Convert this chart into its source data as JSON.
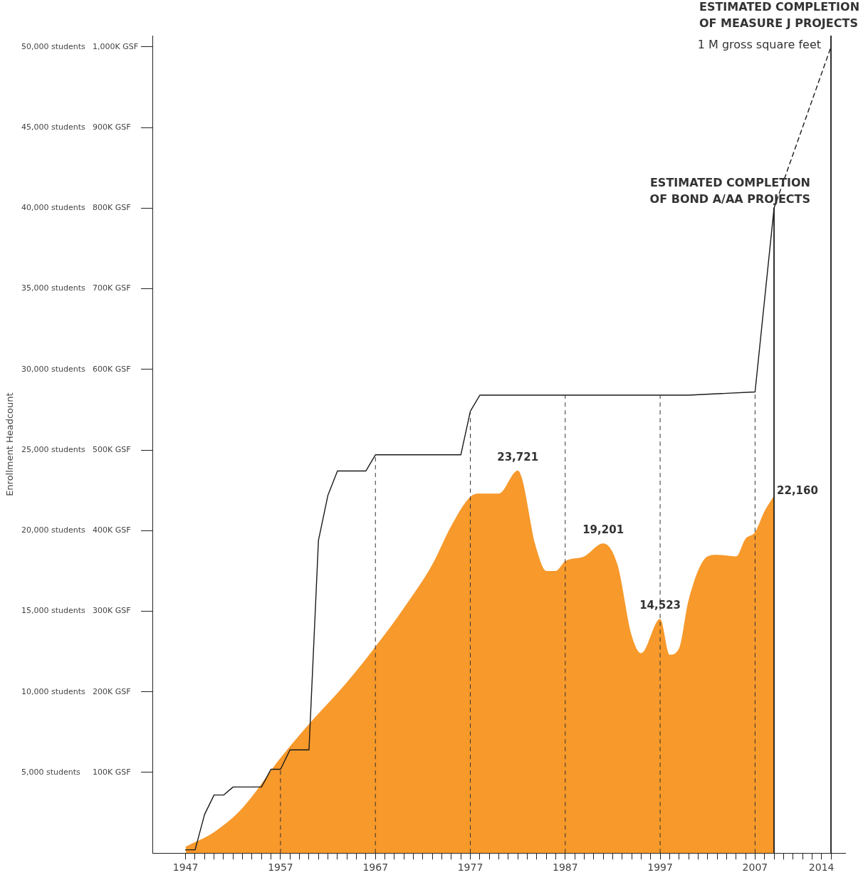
{
  "chart_data": {
    "type": "line",
    "ylabel": "Enrollment Headcount",
    "xlim": [
      1943.5,
      2016.5
    ],
    "ylim": [
      0,
      50700
    ],
    "xticks": [
      1947,
      {
        "value": 1948,
        "label": null
      },
      {
        "value": 1949,
        "label": null
      },
      {
        "value": 1950,
        "label": null
      },
      {
        "value": 1951,
        "label": null
      },
      {
        "value": 1952,
        "label": null
      },
      {
        "value": 1953,
        "label": null
      },
      {
        "value": 1954,
        "label": null
      },
      {
        "value": 1955,
        "label": null
      },
      {
        "value": 1956,
        "label": null
      },
      1957,
      {
        "value": 1958,
        "label": null
      },
      {
        "value": 1959,
        "label": null
      },
      {
        "value": 1960,
        "label": null
      },
      {
        "value": 1961,
        "label": null
      },
      {
        "value": 1962,
        "label": null
      },
      {
        "value": 1963,
        "label": null
      },
      {
        "value": 1964,
        "label": null
      },
      {
        "value": 1965,
        "label": null
      },
      {
        "value": 1966,
        "label": null
      },
      1967,
      {
        "value": 1968,
        "label": null
      },
      {
        "value": 1969,
        "label": null
      },
      {
        "value": 1970,
        "label": null
      },
      {
        "value": 1971,
        "label": null
      },
      {
        "value": 1972,
        "label": null
      },
      {
        "value": 1973,
        "label": null
      },
      {
        "value": 1974,
        "label": null
      },
      {
        "value": 1975,
        "label": null
      },
      {
        "value": 1976,
        "label": null
      },
      1977,
      {
        "value": 1978,
        "label": null
      },
      {
        "value": 1979,
        "label": null
      },
      {
        "value": 1980,
        "label": null
      },
      {
        "value": 1981,
        "label": null
      },
      {
        "value": 1982,
        "label": null
      },
      {
        "value": 1983,
        "label": null
      },
      {
        "value": 1984,
        "label": null
      },
      {
        "value": 1985,
        "label": null
      },
      {
        "value": 1986,
        "label": null
      },
      1987,
      {
        "value": 1988,
        "label": null
      },
      {
        "value": 1989,
        "label": null
      },
      {
        "value": 1990,
        "label": null
      },
      {
        "value": 1991,
        "label": null
      },
      {
        "value": 1992,
        "label": null
      },
      {
        "value": 1993,
        "label": null
      },
      {
        "value": 1994,
        "label": null
      },
      {
        "value": 1995,
        "label": null
      },
      {
        "value": 1996,
        "label": null
      },
      1997,
      {
        "value": 1998,
        "label": null
      },
      {
        "value": 1999,
        "label": null
      },
      {
        "value": 2000,
        "label": null
      },
      {
        "value": 2001,
        "label": null
      },
      {
        "value": 2002,
        "label": null
      },
      {
        "value": 2003,
        "label": null
      },
      {
        "value": 2004,
        "label": null
      },
      {
        "value": 2005,
        "label": null
      },
      {
        "value": 2006,
        "label": null
      },
      2007,
      {
        "value": 2008,
        "label": null
      },
      {
        "value": 2009,
        "label": null
      },
      {
        "value": 2010,
        "label": null
      },
      {
        "value": 2011,
        "label": null
      },
      {
        "value": 2012,
        "label": null
      },
      {
        "value": 2013,
        "label": null
      },
      2014,
      {
        "value": 2015,
        "label": null
      }
    ],
    "yticks": [
      {
        "value": 5000,
        "label": "5,000 students"
      },
      {
        "value": 10000,
        "label": "10,000 students"
      },
      {
        "value": 15000,
        "label": "15,000 students"
      },
      {
        "value": 20000,
        "label": "20,000 students"
      },
      {
        "value": 25000,
        "label": "25,000 students"
      },
      {
        "value": 30000,
        "label": "30,000 students"
      },
      {
        "value": 35000,
        "label": "35,000 students"
      },
      {
        "value": 40000,
        "label": "40,000 students"
      },
      {
        "value": 45000,
        "label": "45,000 students"
      },
      {
        "value": 50000,
        "label": "50,000 students"
      }
    ],
    "y2lim": [
      0,
      1014
    ],
    "y2ticks": [
      {
        "value": 100,
        "label": "100K GSF"
      },
      {
        "value": 200,
        "label": "200K GSF"
      },
      {
        "value": 300,
        "label": "300K GSF"
      },
      {
        "value": 400,
        "label": "400K GSF"
      },
      {
        "value": 500,
        "label": "500K GSF"
      },
      {
        "value": 600,
        "label": "600K GSF"
      },
      {
        "value": 700,
        "label": "700K GSF"
      },
      {
        "value": 800,
        "label": "800K GSF"
      },
      {
        "value": 900,
        "label": "900K GSF"
      },
      {
        "value": 1000,
        "label": "1,000K GSF"
      }
    ],
    "series": [
      {
        "type": "area",
        "color": "#f7992b",
        "x": [
          1947,
          1950,
          1953,
          1957,
          1960,
          1964,
          1967,
          1970,
          1973,
          1975,
          1977,
          1978,
          1980,
          1982,
          1984,
          1985,
          1986,
          1987,
          1989,
          1991,
          1992.5,
          1994,
          1995,
          1997,
          1998,
          1999,
          2000,
          2002,
          2003,
          2005,
          2006,
          2007,
          2008,
          2009
        ],
        "values": [
          400,
          1300,
          2800,
          5900,
          8000,
          10600,
          12800,
          15200,
          17900,
          20300,
          22100,
          22300,
          22300,
          23721,
          18800,
          17500,
          17500,
          18100,
          18400,
          19201,
          17900,
          13500,
          12400,
          14523,
          12300,
          12700,
          15700,
          18400,
          18500,
          18400,
          19500,
          19900,
          21200,
          22160
        ],
        "value_labels": [
          null,
          null,
          null,
          null,
          null,
          null,
          null,
          null,
          null,
          null,
          null,
          null,
          null,
          "23,721",
          null,
          null,
          null,
          null,
          null,
          "19,201",
          null,
          null,
          null,
          "14,523",
          null,
          null,
          null,
          null,
          null,
          null,
          null,
          null,
          null,
          "22,160"
        ]
      },
      {
        "axis": "y2",
        "color": "#1a1a1a",
        "x": [
          1947,
          1948,
          1949,
          1950,
          1951,
          1952,
          1955,
          1956,
          1957,
          1958,
          1960,
          1961,
          1962,
          1963,
          1966,
          1967,
          1976,
          1977,
          1978,
          2000,
          2007,
          2009
        ],
        "values": [
          4,
          4,
          48,
          72,
          72,
          82,
          82,
          104,
          104,
          128,
          128,
          388,
          444,
          474,
          474,
          494,
          494,
          548,
          568,
          568,
          572,
          800
        ]
      },
      {
        "axis": "y2",
        "color": "#1a1a1a",
        "line_style": "dashed",
        "x": [
          2009,
          2015
        ],
        "values": [
          800,
          1000
        ]
      }
    ],
    "ref_lines": [
      {
        "axis": "x",
        "value": 1957,
        "color": "#333333",
        "line_style": "dashed"
      },
      {
        "axis": "x",
        "value": 1967,
        "color": "#333333",
        "line_style": "dashed"
      },
      {
        "axis": "x",
        "value": 1977,
        "color": "#333333",
        "line_style": "dashed"
      },
      {
        "axis": "x",
        "value": 1987,
        "color": "#333333",
        "line_style": "dashed"
      },
      {
        "axis": "x",
        "value": 1997,
        "color": "#333333",
        "line_style": "dashed"
      },
      {
        "axis": "x",
        "value": 2007,
        "color": "#333333",
        "line_style": "dashed"
      },
      {
        "axis": "x",
        "value": 2009,
        "color": "#1a1a1a",
        "line_style": "solid"
      },
      {
        "axis": "x",
        "value": 2015,
        "color": "#1a1a1a",
        "line_style": "solid"
      }
    ],
    "annotations": [
      "ESTIMATED COMPLETION OF BOND A/AA PROJECTS",
      "ESTIMATED COMPLETION OF MEASURE J PROJECTS",
      "1 M gross square feet"
    ],
    "grid": false,
    "legend": false
  }
}
